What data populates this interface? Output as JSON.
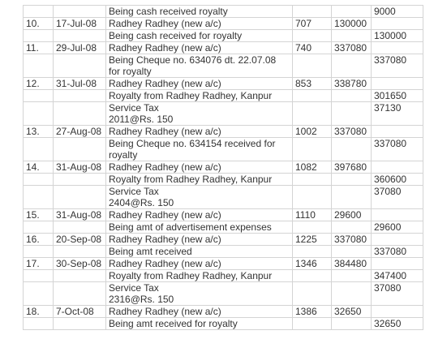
{
  "table": {
    "rows": [
      [
        null,
        null,
        "Being cash received royalty",
        null,
        null,
        9000
      ],
      [
        "10.",
        "17-Jul-08",
        "Radhey Radhey (new a/c)",
        707,
        130000,
        null
      ],
      [
        null,
        null,
        "Being cash received for royalty",
        null,
        null,
        130000
      ],
      [
        "11.",
        "29-Jul-08",
        "Radhey Radhey (new a/c)",
        740,
        337080,
        null
      ],
      [
        null,
        null,
        [
          "Being Cheque no. 634076 dt. 22.07.08",
          "for royalty"
        ],
        null,
        null,
        337080
      ],
      [
        "12.",
        "31-Jul-08",
        "Radhey Radhey (new a/c)",
        853,
        338780,
        null
      ],
      [
        null,
        null,
        "Royalty from Radhey Radhey, Kanpur",
        null,
        null,
        301650
      ],
      [
        null,
        null,
        [
          "Service Tax",
          "2011@Rs. 150"
        ],
        null,
        null,
        37130
      ],
      [
        "13.",
        "27-Aug-08",
        "Radhey Radhey (new a/c)",
        1002,
        337080,
        null
      ],
      [
        null,
        null,
        [
          "Being Cheque no. 634154 received for",
          "royalty"
        ],
        null,
        null,
        337080
      ],
      [
        "14.",
        "31-Aug-08",
        "Radhey Radhey (new a/c)",
        1082,
        397680,
        null
      ],
      [
        null,
        null,
        "Royalty from Radhey Radhey, Kanpur",
        null,
        null,
        360600
      ],
      [
        null,
        null,
        [
          "Service Tax",
          "2404@Rs. 150"
        ],
        null,
        null,
        37080
      ],
      [
        "15.",
        "31-Aug-08",
        "Radhey Radhey (new a/c)",
        1110,
        29600,
        null
      ],
      [
        null,
        null,
        "Being amt of advertisement expenses",
        null,
        null,
        29600
      ],
      [
        "16.",
        "20-Sep-08",
        "Radhey Radhey (new a/c)",
        1225,
        337080,
        null
      ],
      [
        null,
        null,
        "Being amt received",
        null,
        null,
        337080
      ],
      [
        "17.",
        "30-Sep-08",
        "Radhey Radhey (new a/c)",
        1346,
        384480,
        null
      ],
      [
        null,
        null,
        "Royalty from Radhey Radhey, Kanpur",
        null,
        null,
        347400
      ],
      [
        null,
        null,
        [
          "Service Tax",
          "2316@Rs. 150"
        ],
        null,
        null,
        37080
      ],
      [
        "18.",
        "7-Oct-08",
        "Radhey Radhey (new a/c)",
        1386,
        32650,
        null
      ],
      [
        null,
        null,
        "Being amt received for royalty",
        null,
        null,
        32650
      ]
    ]
  }
}
